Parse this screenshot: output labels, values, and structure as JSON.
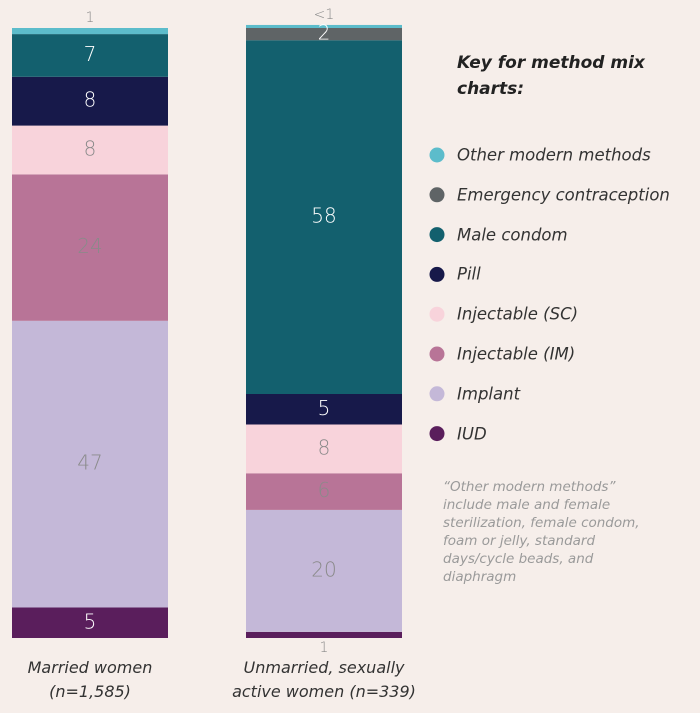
{
  "chart_data": {
    "type": "stacked_bar",
    "legend_title": "Key for method mix charts:",
    "note": "“Other modern methods” include male and female sterilization, female condom, foam or jelly, standard days/cycle beads, and diaphragm",
    "categories": [
      "Married women\n(n=1,585)",
      "Unmarried, sexually\nactive women (n=339)"
    ],
    "ylim": [
      0,
      100
    ],
    "series": [
      {
        "name": "Other modern methods",
        "color": "#5cbccb",
        "values": [
          1,
          0.5
        ],
        "value_labels": [
          "1",
          "<1"
        ]
      },
      {
        "name": "Emergency contraception",
        "color": "#5f6466",
        "values": [
          null,
          2
        ]
      },
      {
        "name": "Male condom",
        "color": "#13606e",
        "values": [
          7,
          58
        ]
      },
      {
        "name": "Pill",
        "color": "#17194a",
        "values": [
          8,
          5
        ]
      },
      {
        "name": "Injectable (SC)",
        "color": "#f8d3db",
        "values": [
          8,
          8
        ]
      },
      {
        "name": "Injectable (IM)",
        "color": "#b87497",
        "values": [
          24,
          6
        ]
      },
      {
        "name": "Implant",
        "color": "#c4b8d8",
        "values": [
          47,
          20
        ]
      },
      {
        "name": "IUD",
        "color": "#5a1e5c",
        "values": [
          5,
          1
        ]
      }
    ]
  }
}
